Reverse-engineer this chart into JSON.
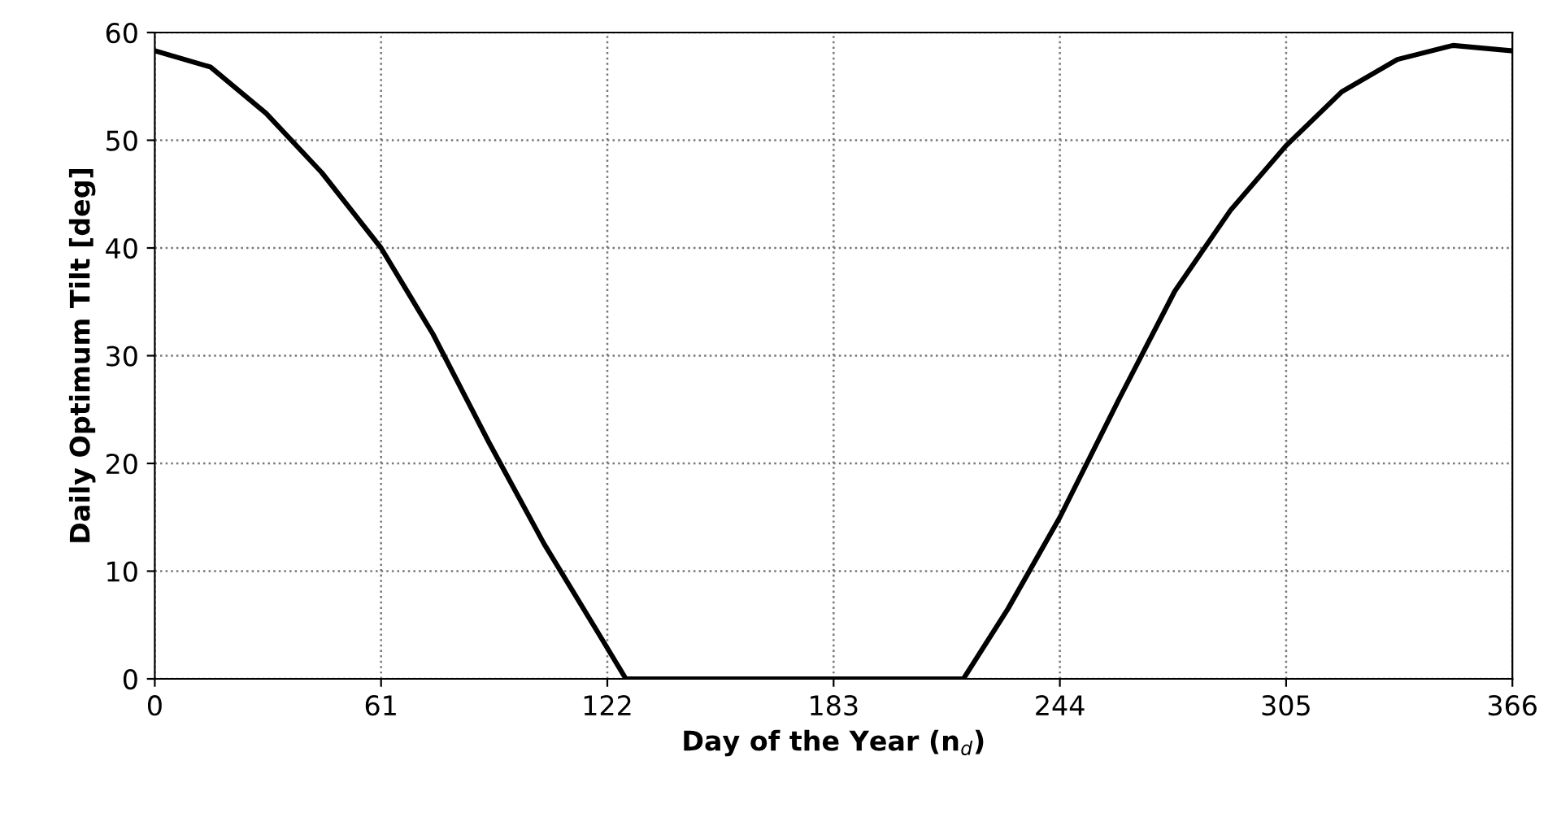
{
  "chart_data": {
    "type": "line",
    "xlabel": "Day of the Year (n$_{d}$)",
    "ylabel": "Daily Optimum Tilt [deg]",
    "x": [
      0,
      15,
      30,
      45,
      61,
      75,
      90,
      105,
      120,
      127,
      150,
      183,
      218,
      230,
      244,
      260,
      275,
      290,
      305,
      320,
      335,
      350,
      366
    ],
    "series": [
      {
        "color": "#000000",
        "values": [
          58.3,
          56.8,
          52.5,
          47,
          40,
          32,
          22,
          12.5,
          4,
          0,
          0,
          0,
          0,
          6.5,
          15,
          26,
          36,
          43.5,
          49.5,
          54.5,
          57.5,
          58.8,
          58.3
        ]
      }
    ],
    "xlim": [
      0,
      366
    ],
    "xticks": [
      0,
      61,
      122,
      183,
      244,
      305,
      366
    ],
    "ylim": [
      0,
      60
    ],
    "yticks": [
      0,
      10,
      20,
      30,
      40,
      50,
      60
    ],
    "grid": true,
    "marker": "none",
    "line_style": "solid"
  }
}
